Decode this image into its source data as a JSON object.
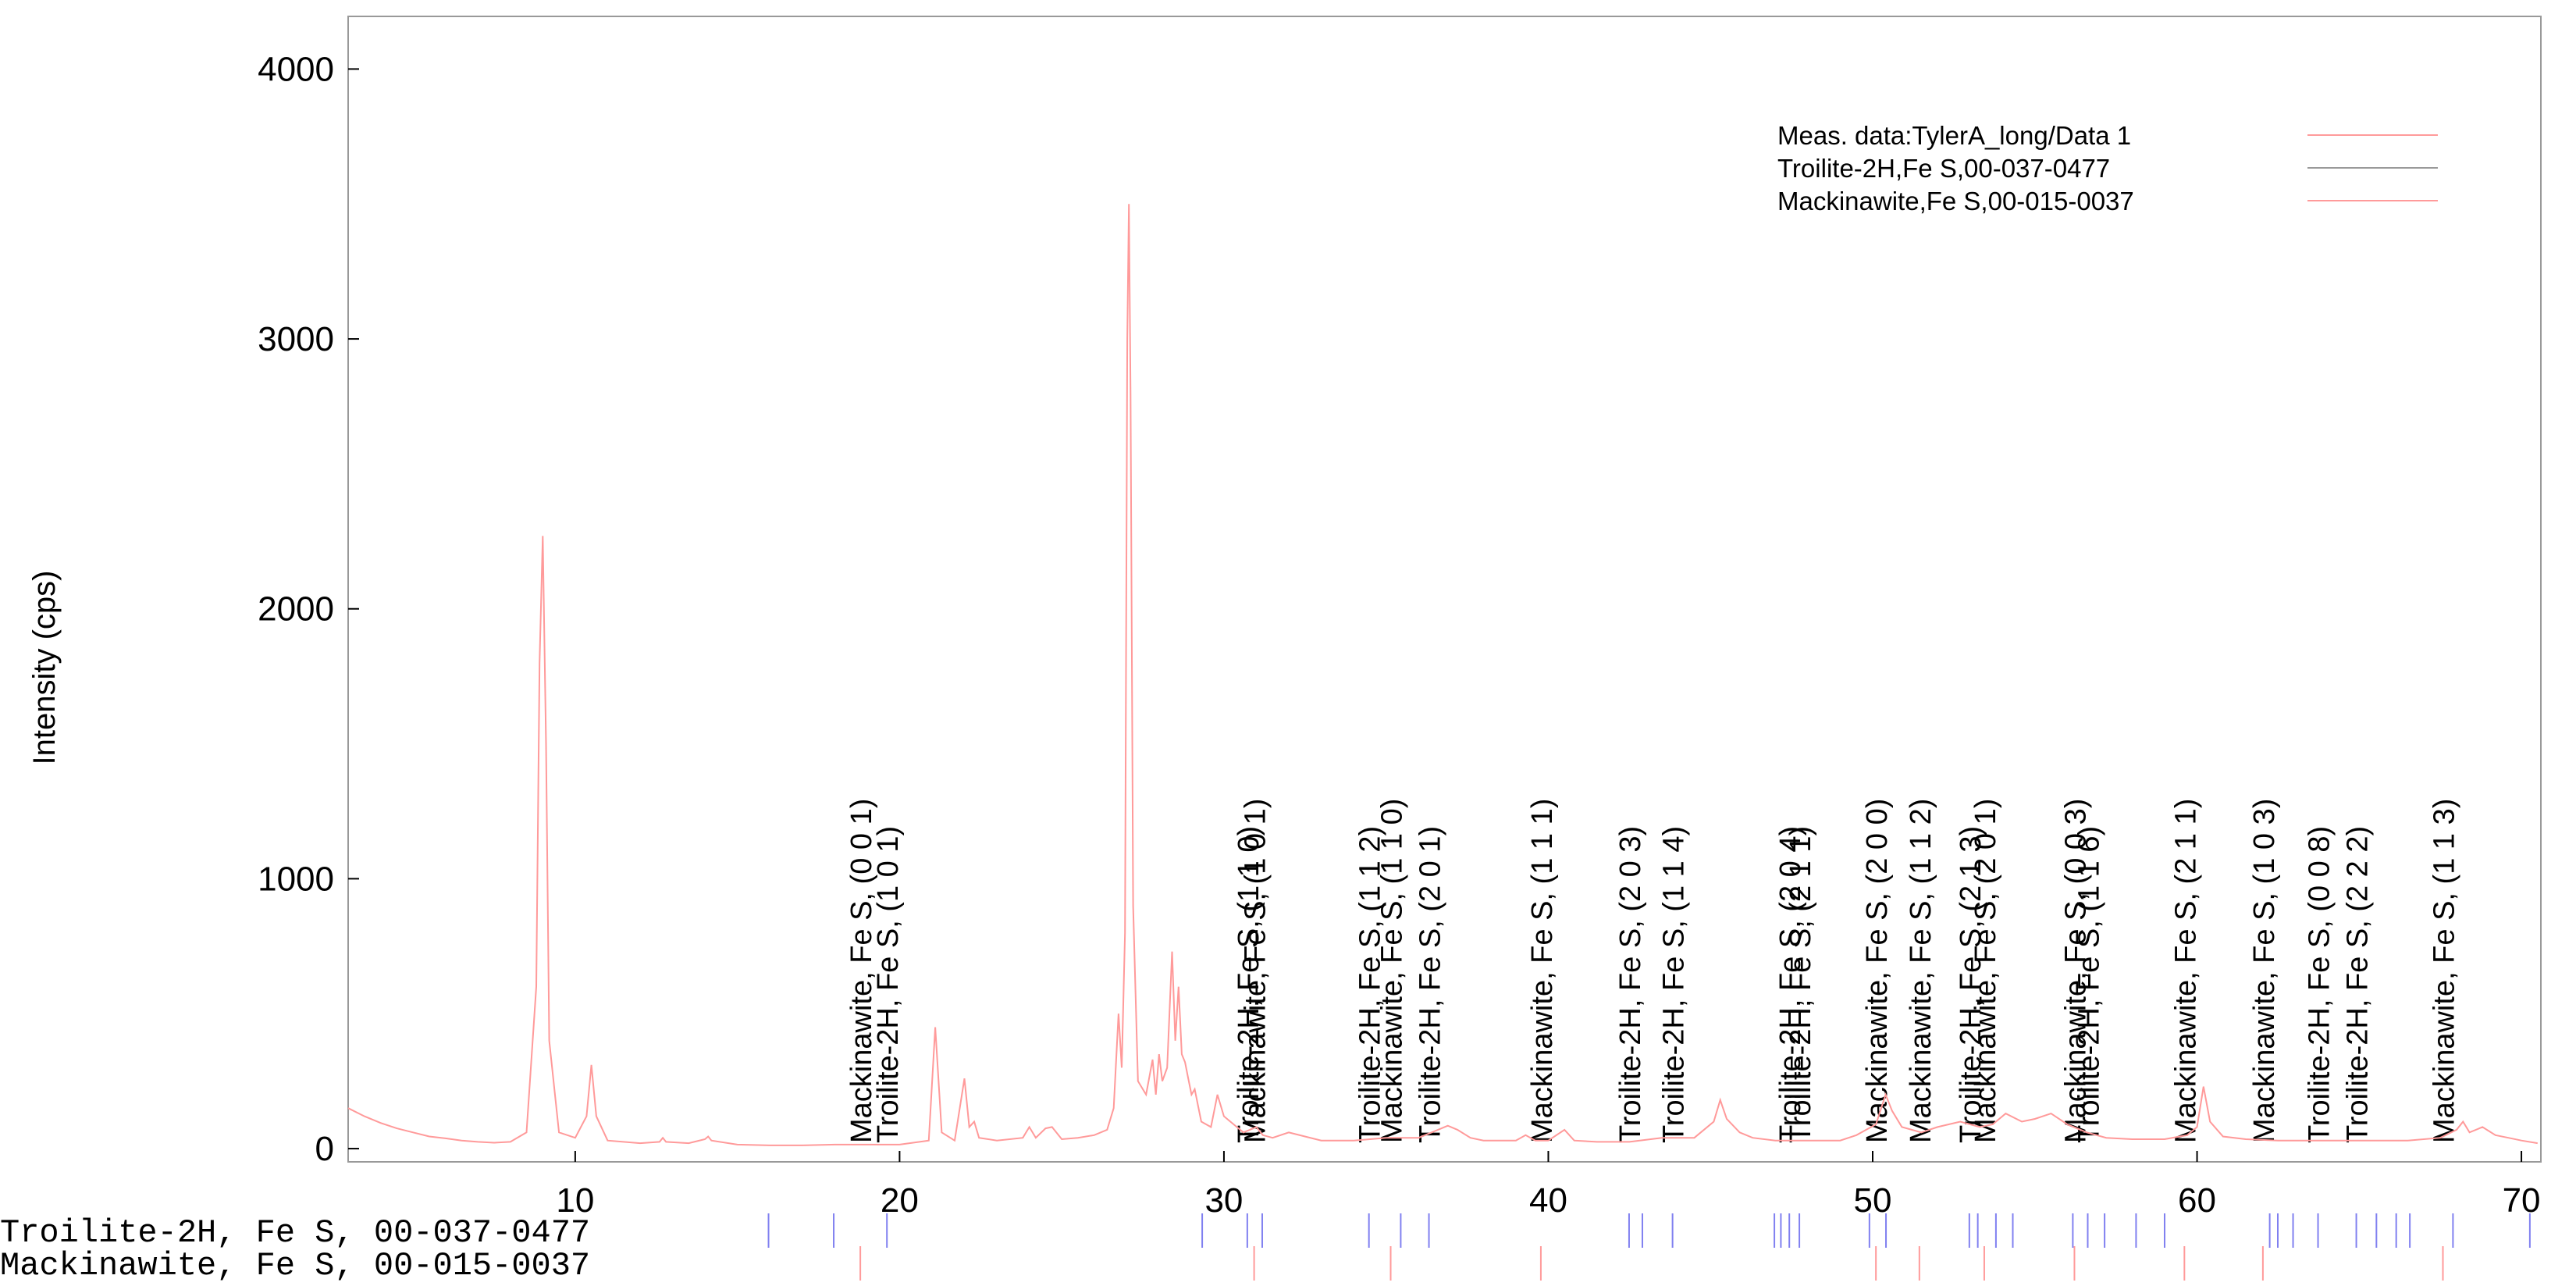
{
  "chart_data": {
    "type": "line",
    "y_label": "Intensity (cps)",
    "xlim": [
      3,
      70.6
    ],
    "ylim": [
      -49,
      4195
    ],
    "xticks": [
      10,
      20,
      30,
      40,
      50,
      60,
      70
    ],
    "yticks": [
      0,
      1000,
      2000,
      3000,
      4000
    ],
    "x": [
      3,
      3.5,
      4,
      4.5,
      5,
      5.5,
      6,
      6.5,
      7,
      7.5,
      8,
      8.5,
      8.8,
      8.9,
      9.0,
      9.1,
      9.2,
      9.5,
      10,
      10.35,
      10.5,
      10.65,
      11,
      12,
      12.6,
      12.7,
      12.8,
      13.5,
      14.0,
      14.1,
      14.2,
      15,
      16,
      17,
      18,
      19,
      20,
      20.9,
      21.1,
      21.3,
      21.7,
      22.0,
      22.15,
      22.3,
      22.45,
      23,
      23.8,
      24.0,
      24.2,
      24.5,
      24.7,
      25,
      25.5,
      26,
      26.4,
      26.6,
      26.75,
      26.85,
      26.95,
      27.02,
      27.07,
      27.12,
      27.2,
      27.35,
      27.6,
      27.8,
      27.9,
      28.0,
      28.1,
      28.25,
      28.4,
      28.5,
      28.6,
      28.7,
      28.8,
      28.9,
      29.0,
      29.1,
      29.3,
      29.6,
      29.8,
      30.0,
      30.3,
      30.6,
      31.0,
      31.2,
      31.5,
      32,
      33,
      34,
      35,
      36,
      36.6,
      36.9,
      37.2,
      37.6,
      38,
      39,
      39.3,
      39.6,
      40,
      40.5,
      40.8,
      41.5,
      42.5,
      43.5,
      44.5,
      45.1,
      45.3,
      45.5,
      45.9,
      46.3,
      47,
      48,
      49,
      49.5,
      50.1,
      50.4,
      50.6,
      50.9,
      51.5,
      52,
      52.7,
      53.3,
      53.7,
      54.1,
      54.6,
      55,
      55.5,
      56,
      56.6,
      57.2,
      58,
      59,
      59.7,
      60.0,
      60.2,
      60.4,
      60.8,
      61.5,
      62.5,
      63.5,
      64.5,
      65.5,
      66.5,
      67.5,
      68.0,
      68.2,
      68.4,
      68.8,
      69.2,
      69.6,
      70,
      70.5
    ],
    "series": [
      {
        "name": "Meas. data:TylerA_long/Data 1",
        "color": "#ff9a9a",
        "values": [
          150,
          120,
          95,
          75,
          60,
          45,
          38,
          30,
          25,
          22,
          25,
          60,
          600,
          1800,
          2270,
          1500,
          400,
          60,
          40,
          120,
          310,
          120,
          30,
          20,
          25,
          40,
          25,
          20,
          35,
          45,
          30,
          15,
          12,
          12,
          15,
          15,
          15,
          30,
          450,
          60,
          30,
          260,
          80,
          100,
          40,
          30,
          40,
          80,
          40,
          75,
          80,
          35,
          40,
          50,
          70,
          150,
          500,
          300,
          800,
          3000,
          3500,
          2800,
          900,
          250,
          200,
          330,
          200,
          350,
          250,
          300,
          730,
          400,
          600,
          350,
          320,
          260,
          200,
          220,
          100,
          80,
          200,
          120,
          90,
          60,
          80,
          50,
          40,
          60,
          30,
          30,
          40,
          40,
          70,
          85,
          70,
          40,
          30,
          30,
          50,
          30,
          30,
          70,
          30,
          25,
          25,
          40,
          40,
          100,
          180,
          110,
          60,
          40,
          30,
          30,
          30,
          50,
          90,
          200,
          140,
          80,
          60,
          80,
          100,
          80,
          90,
          130,
          100,
          110,
          130,
          90,
          60,
          40,
          35,
          35,
          50,
          80,
          230,
          100,
          45,
          35,
          30,
          30,
          30,
          30,
          30,
          40,
          70,
          100,
          60,
          80,
          50,
          40,
          30,
          20
        ]
      }
    ],
    "references": [
      {
        "name": "Troilite-2H, Fe S, 00-037-0477",
        "legend": "Troilite-2H,Fe S,00-037-0477",
        "color": "#8080f0",
        "legend_color": "#999999",
        "label_color": "#0000ee",
        "peaks": [
          15.96,
          17.97,
          19.61,
          29.33,
          30.72,
          31.18,
          34.47,
          35.45,
          36.32,
          42.49,
          42.9,
          43.83,
          46.97,
          47.17,
          47.43,
          47.74,
          49.9,
          50.41,
          52.98,
          53.24,
          53.8,
          54.32,
          56.17,
          56.63,
          57.15,
          58.12,
          59.0,
          62.24,
          62.49,
          62.96,
          63.73,
          64.91,
          65.53,
          66.14,
          66.56,
          67.89,
          70.26
        ],
        "labels": [
          {
            "x": 19.61,
            "label": "Troilite-2H, Fe S, (1 0 1)"
          },
          {
            "x": 30.72,
            "label": "Troilite-2H, Fe S, (1 1 0)"
          },
          {
            "x": 34.47,
            "label": "Troilite-2H, Fe S, (1 1 2)"
          },
          {
            "x": 36.32,
            "label": "Troilite-2H, Fe S, (2 0 1)"
          },
          {
            "x": 42.49,
            "label": "Troilite-2H, Fe S, (2 0 3)"
          },
          {
            "x": 43.83,
            "label": "Troilite-2H, Fe S, (1 1 4)"
          },
          {
            "x": 47.43,
            "label": "Troilite-2H, Fe S, (2 0 4)"
          },
          {
            "x": 47.74,
            "label": "Troilite-2H, Fe S, (2 1 1)"
          },
          {
            "x": 52.98,
            "label": "Troilite-2H, Fe S, (2 1 3)"
          },
          {
            "x": 56.63,
            "label": "Troilite-2H, Fe S, (1 1 6)"
          },
          {
            "x": 63.73,
            "label": "Troilite-2H, Fe S, (0 0 8)"
          },
          {
            "x": 64.91,
            "label": "Troilite-2H, Fe S, (2 2 2)"
          }
        ]
      },
      {
        "name": "Mackinawite, Fe S, 00-015-0037",
        "legend": "Mackinawite,Fe S,00-015-0037",
        "color": "#ff9a9a",
        "legend_color": "#ff9a9a",
        "label_color": "#22bb22",
        "peaks": [
          18.79,
          30.93,
          35.14,
          39.77,
          50.1,
          51.44,
          53.44,
          56.22,
          59.61,
          62.03,
          67.58
        ],
        "labels": [
          {
            "x": 18.79,
            "label": "Mackinawite, Fe S, (0 0 1)"
          },
          {
            "x": 30.93,
            "label": "Mackinawite, Fe S, (1 0 1)"
          },
          {
            "x": 35.14,
            "label": "Mackinawite, Fe S, (1 1 0)"
          },
          {
            "x": 39.77,
            "label": "Mackinawite, Fe S, (1 1 1)"
          },
          {
            "x": 50.1,
            "label": "Mackinawite, Fe S, (2 0 0)"
          },
          {
            "x": 51.44,
            "label": "Mackinawite, Fe S, (1 1 2)"
          },
          {
            "x": 53.44,
            "label": "Mackinawite, Fe S, (2 0 1)"
          },
          {
            "x": 56.22,
            "label": "Mackinawite, Fe S, (0 0 3)"
          },
          {
            "x": 59.61,
            "label": "Mackinawite, Fe S, (2 1 1)"
          },
          {
            "x": 62.03,
            "label": "Mackinawite, Fe S, (1 0 3)"
          },
          {
            "x": 67.58,
            "label": "Mackinawite, Fe S, (1 1 3)"
          }
        ]
      }
    ]
  }
}
